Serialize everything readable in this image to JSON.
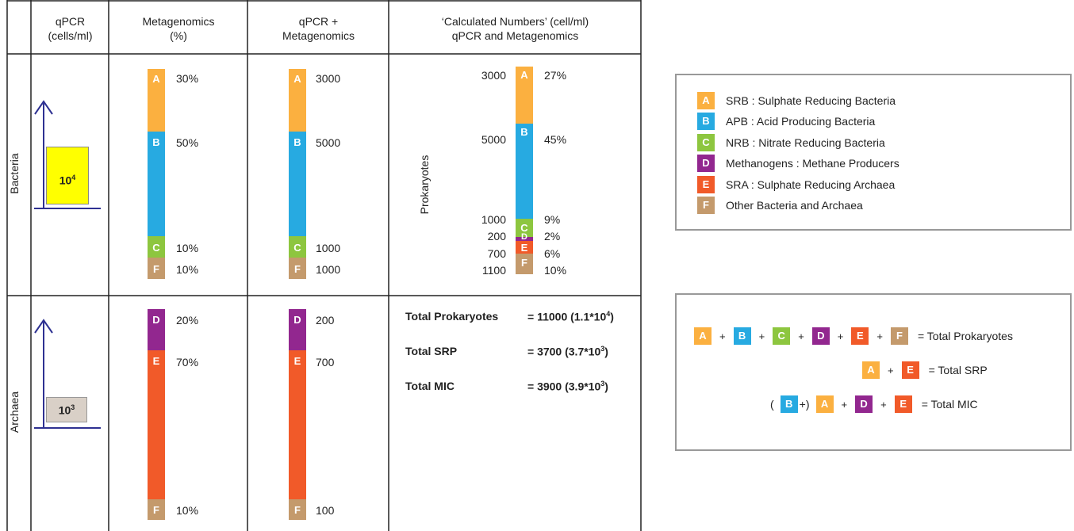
{
  "colors": {
    "A": "#fbb040",
    "B": "#27aae1",
    "C": "#8dc63f",
    "D": "#92278f",
    "E": "#f15a29",
    "F": "#c49a6c",
    "bacteria_box": "#ffff00",
    "archaea_box": "#d9d0c7",
    "axis": "#2e3192"
  },
  "table": {
    "headers": {
      "qpcr": "qPCR\n(cells/ml)",
      "metagenomics": "Metagenomics\n(%)",
      "qpcr_meta": "qPCR +\nMetagenomics",
      "calculated": "‘Calculated Numbers’ (cell/ml)\nqPCR and Metagenomics"
    },
    "rows": {
      "bacteria": "Bacteria",
      "archaea": "Archaea"
    },
    "qpcr_values": {
      "bacteria_base": "10",
      "bacteria_exp": "4",
      "archaea_base": "10",
      "archaea_exp": "3"
    },
    "bacteria_meta": {
      "A": "30%",
      "B": "50%",
      "C": "10%",
      "F": "10%"
    },
    "bacteria_counts": {
      "A": "3000",
      "B": "5000",
      "C": "1000",
      "F": "1000"
    },
    "archaea_meta": {
      "D": "20%",
      "E": "70%",
      "F": "10%"
    },
    "archaea_counts": {
      "D": "200",
      "E": "700",
      "F": "100"
    },
    "calculated": {
      "axis_label": "Prokaryotes",
      "left": {
        "A": "3000",
        "B": "5000",
        "C": "1000",
        "D": "200",
        "E": "700",
        "F": "1100"
      },
      "right": {
        "A": "27%",
        "B": "45%",
        "C": "9%",
        "D": "2%",
        "E": "6%",
        "F": "10%"
      }
    },
    "totals": {
      "prok_label": "Total Prokaryotes",
      "prok_eq": "= 11000 (1.1*10",
      "prok_exp": "4",
      "srp_label": "Total SRP",
      "srp_eq": "= 3700 (3.7*10",
      "srp_exp": "3",
      "mic_label": "Total MIC",
      "mic_eq": "= 3900 (3.9*10",
      "mic_exp": "3",
      "close": ")"
    }
  },
  "legend": [
    {
      "key": "A",
      "text": "SRB : Sulphate Reducing Bacteria"
    },
    {
      "key": "B",
      "text": "APB : Acid Producing Bacteria"
    },
    {
      "key": "C",
      "text": "NRB : Nitrate Reducing Bacteria"
    },
    {
      "key": "D",
      "text": "Methanogens : Methane Producers"
    },
    {
      "key": "E",
      "text": "SRA : Sulphate Reducing Archaea"
    },
    {
      "key": "F",
      "text": "Other Bacteria and Archaea"
    }
  ],
  "equations": {
    "plus": "+",
    "eq_prok": "= Total Prokaryotes",
    "eq_srp": "= Total SRP",
    "eq_mic": "= Total MIC",
    "open_paren": "(",
    "close_paren": "+)"
  }
}
